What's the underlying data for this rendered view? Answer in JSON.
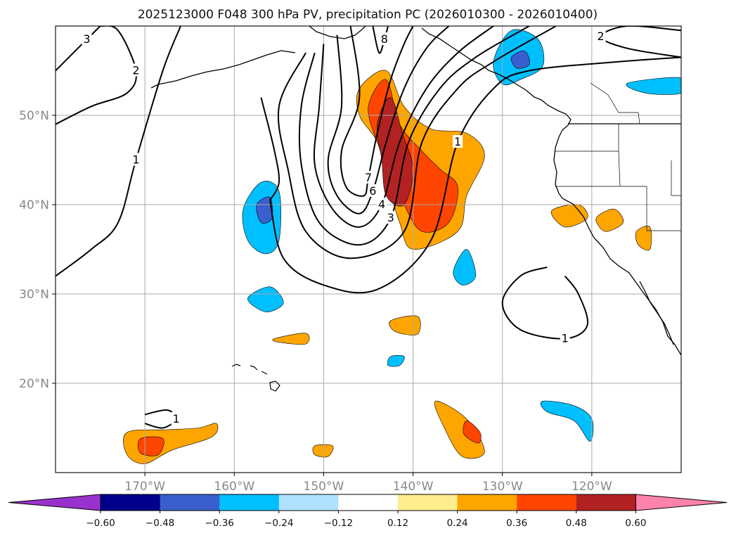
{
  "chart_data": {
    "type": "contour-map",
    "title": "2025123000 F048 300 hPa PV, precipitation PC (2026010300 - 2026010400)",
    "xlim": [
      -180,
      -110
    ],
    "ylim": [
      10,
      60
    ],
    "x_ticks": [
      -170,
      -160,
      -150,
      -140,
      -130,
      -120
    ],
    "x_tick_labels": [
      "170°W",
      "160°W",
      "150°W",
      "140°W",
      "130°W",
      "120°W"
    ],
    "y_ticks": [
      20,
      30,
      40,
      50
    ],
    "y_tick_labels": [
      "20°N",
      "30°N",
      "40°N",
      "50°N"
    ],
    "grid": true,
    "colorbar": {
      "levels": [
        -0.6,
        -0.48,
        -0.36,
        -0.24,
        -0.12,
        0.12,
        0.24,
        0.36,
        0.48,
        0.6
      ],
      "labels": [
        "−0.60",
        "−0.48",
        "−0.36",
        "−0.24",
        "−0.12",
        "0.12",
        "0.24",
        "0.36",
        "0.48",
        "0.60"
      ],
      "colors": [
        "#9932cc",
        "#00008b",
        "#3a5fcd",
        "#00bfff",
        "#b0e2ff",
        "#ffffff",
        "#ffec8b",
        "#ffa500",
        "#ff4500",
        "#b22222",
        "#ff82ab"
      ],
      "extend": "both"
    },
    "pv_contour_labels": [
      "1",
      "2",
      "3",
      "4",
      "6",
      "7",
      "8"
    ],
    "pv_contours": [
      {
        "level": 1,
        "label": "1",
        "points": [
          [
            -180,
            32
          ],
          [
            -176,
            35
          ],
          [
            -173,
            38
          ],
          [
            -171,
            45
          ],
          [
            -168,
            55
          ],
          [
            -166,
            60
          ]
        ]
      },
      {
        "level": 2,
        "label": "2",
        "points": [
          [
            -180,
            49
          ],
          [
            -176,
            51
          ],
          [
            -172,
            52.5
          ],
          [
            -171,
            55
          ],
          [
            -173,
            59.5
          ],
          [
            -175,
            60
          ]
        ]
      },
      {
        "level": 3,
        "label": "3",
        "points": [
          [
            -180,
            55
          ],
          [
            -178,
            57
          ],
          [
            -176.5,
            58.5
          ],
          [
            -175,
            60
          ]
        ]
      },
      {
        "level": 1,
        "label": "1",
        "points": [
          [
            -156,
            40.5
          ],
          [
            -154.5,
            34
          ],
          [
            -150,
            31
          ],
          [
            -144,
            30.5
          ],
          [
            -138,
            36
          ],
          [
            -135,
            47
          ],
          [
            -131,
            53
          ],
          [
            -127,
            55
          ],
          [
            -117,
            56
          ],
          [
            -110,
            56.5
          ]
        ]
      },
      {
        "level": 1,
        "label": "",
        "points": [
          [
            -157,
            52
          ],
          [
            -155.5,
            46
          ],
          [
            -155,
            42.5
          ],
          [
            -156,
            40.5
          ]
        ]
      },
      {
        "level": 2,
        "label": "",
        "points": [
          [
            -152,
            57
          ],
          [
            -155,
            51
          ],
          [
            -154,
            44
          ],
          [
            -152,
            37
          ],
          [
            -147,
            34
          ],
          [
            -141,
            37
          ],
          [
            -139,
            47
          ],
          [
            -135,
            53
          ],
          [
            -131,
            56
          ],
          [
            -124,
            60
          ]
        ]
      },
      {
        "level": 3,
        "label": "3",
        "points": [
          [
            -151,
            57
          ],
          [
            -152.5,
            51
          ],
          [
            -152.5,
            44.5
          ],
          [
            -150.5,
            38
          ],
          [
            -146,
            35.5
          ],
          [
            -142.5,
            38.5
          ],
          [
            -140.5,
            47
          ],
          [
            -137,
            53
          ],
          [
            -133,
            56.5
          ],
          [
            -127,
            60
          ]
        ]
      },
      {
        "level": 4,
        "label": "4",
        "points": [
          [
            -150,
            58
          ],
          [
            -150.5,
            51
          ],
          [
            -151,
            44.5
          ],
          [
            -149,
            39.5
          ],
          [
            -146,
            37.5
          ],
          [
            -143.5,
            40
          ],
          [
            -141.5,
            47
          ],
          [
            -138.5,
            53
          ],
          [
            -135,
            57
          ],
          [
            -131,
            60
          ]
        ]
      },
      {
        "level": 6,
        "label": "6",
        "points": [
          [
            -148.5,
            59
          ],
          [
            -148,
            51
          ],
          [
            -149.5,
            45
          ],
          [
            -148.5,
            41
          ],
          [
            -146,
            39
          ],
          [
            -144.5,
            41.5
          ],
          [
            -143,
            47
          ],
          [
            -141,
            53
          ],
          [
            -138.5,
            57.5
          ],
          [
            -136,
            60
          ]
        ]
      },
      {
        "level": 7,
        "label": "7",
        "points": [
          [
            -147,
            60
          ],
          [
            -146,
            52
          ],
          [
            -148,
            46
          ],
          [
            -147.5,
            42
          ],
          [
            -145.5,
            41
          ],
          [
            -145,
            43
          ],
          [
            -144,
            48
          ],
          [
            -142.5,
            54
          ],
          [
            -141,
            58
          ],
          [
            -140,
            60
          ]
        ]
      },
      {
        "level": 8,
        "label": "8",
        "points": [
          [
            -144.5,
            60
          ],
          [
            -143.8,
            57
          ],
          [
            -143.2,
            58.5
          ],
          [
            -142.8,
            60
          ]
        ]
      },
      {
        "level": 2,
        "label": "2",
        "points": [
          [
            -110,
            56.5
          ],
          [
            -116,
            57.5
          ],
          [
            -119,
            58.8
          ],
          [
            -116,
            60
          ],
          [
            -110,
            59.5
          ]
        ]
      },
      {
        "level": 1,
        "label": "1",
        "points": [
          [
            -125,
            33
          ],
          [
            -128,
            32
          ],
          [
            -130,
            29
          ],
          [
            -128,
            26
          ],
          [
            -123,
            25
          ],
          [
            -120.5,
            26.5
          ],
          [
            -121.5,
            30
          ],
          [
            -123,
            32
          ]
        ]
      },
      {
        "level": 1,
        "label": "1",
        "points": [
          [
            -170,
            16.5
          ],
          [
            -167.5,
            17
          ],
          [
            -166.5,
            16
          ],
          [
            -168,
            15
          ],
          [
            -170,
            15.5
          ]
        ]
      }
    ],
    "precip_regions": [
      {
        "value": 0.3,
        "points": [
          [
            -146,
            53
          ],
          [
            -143,
            55
          ],
          [
            -141,
            51
          ],
          [
            -138,
            48.5
          ],
          [
            -134,
            48
          ],
          [
            -132,
            45.5
          ],
          [
            -134,
            41
          ],
          [
            -135,
            37
          ],
          [
            -140,
            35
          ],
          [
            -141.5,
            38
          ],
          [
            -143,
            43
          ],
          [
            -144,
            47
          ],
          [
            -146,
            50
          ]
        ]
      },
      {
        "value": 0.4,
        "points": [
          [
            -145,
            51
          ],
          [
            -143,
            54
          ],
          [
            -141.5,
            49
          ],
          [
            -139,
            46
          ],
          [
            -137,
            44
          ],
          [
            -135,
            42
          ],
          [
            -136,
            38
          ],
          [
            -139,
            37
          ],
          [
            -141,
            40
          ],
          [
            -142.5,
            44
          ],
          [
            -144,
            47
          ]
        ]
      },
      {
        "value": 0.5,
        "points": [
          [
            -144,
            49
          ],
          [
            -142.5,
            52
          ],
          [
            -141.2,
            48
          ],
          [
            -140,
            44
          ],
          [
            -141,
            40
          ],
          [
            -143,
            41
          ],
          [
            -143.5,
            45
          ]
        ]
      },
      {
        "value": -0.3,
        "points": [
          [
            -159,
            39.5
          ],
          [
            -157,
            42.5
          ],
          [
            -155,
            41.5
          ],
          [
            -155,
            36
          ],
          [
            -156.5,
            34.5
          ],
          [
            -158.5,
            36
          ]
        ]
      },
      {
        "value": -0.4,
        "points": [
          [
            -157.5,
            40
          ],
          [
            -156,
            40.8
          ],
          [
            -155.8,
            38.5
          ],
          [
            -157,
            38
          ]
        ]
      },
      {
        "value": -0.3,
        "points": [
          [
            -131,
            56
          ],
          [
            -129,
            59.5
          ],
          [
            -126,
            58.5
          ],
          [
            -125.5,
            55.5
          ],
          [
            -128,
            54
          ],
          [
            -130,
            53.5
          ]
        ]
      },
      {
        "value": -0.45,
        "points": [
          [
            -129,
            56.5
          ],
          [
            -127.5,
            57.2
          ],
          [
            -127,
            55.7
          ],
          [
            -128.4,
            55.3
          ]
        ]
      },
      {
        "value": -0.3,
        "points": [
          [
            -116,
            53.6
          ],
          [
            -110,
            54.2
          ],
          [
            -110,
            52.5
          ],
          [
            -114,
            52.5
          ]
        ]
      },
      {
        "value": -0.3,
        "points": [
          [
            -135.5,
            32.5
          ],
          [
            -134,
            35
          ],
          [
            -133,
            32
          ],
          [
            -134.5,
            31
          ]
        ]
      },
      {
        "value": -0.25,
        "points": [
          [
            -158.5,
            29.5
          ],
          [
            -156,
            30.8
          ],
          [
            -154.5,
            29
          ],
          [
            -156.5,
            28
          ]
        ]
      },
      {
        "value": 0.3,
        "points": [
          [
            -124.5,
            39.3
          ],
          [
            -121.5,
            40
          ],
          [
            -120.5,
            38.5
          ],
          [
            -123,
            37.5
          ]
        ]
      },
      {
        "value": 0.35,
        "points": [
          [
            -119.5,
            38.5
          ],
          [
            -117.5,
            39.5
          ],
          [
            -116.5,
            38
          ],
          [
            -118.5,
            37
          ]
        ]
      },
      {
        "value": 0.3,
        "points": [
          [
            -142.5,
            27
          ],
          [
            -139.5,
            27.5
          ],
          [
            -139.5,
            25.5
          ],
          [
            -142,
            25.8
          ]
        ]
      },
      {
        "value": 0.3,
        "points": [
          [
            -155.5,
            25
          ],
          [
            -152,
            25.6
          ],
          [
            -152,
            24.4
          ],
          [
            -155,
            24.6
          ]
        ]
      },
      {
        "value": 0.3,
        "points": [
          [
            -137.5,
            18
          ],
          [
            -134,
            16
          ],
          [
            -132,
            12.3
          ],
          [
            -134.5,
            11.8
          ],
          [
            -136.5,
            15
          ]
        ]
      },
      {
        "value": 0.4,
        "points": [
          [
            -134,
            15.8
          ],
          [
            -132.5,
            14.5
          ],
          [
            -132.7,
            13.3
          ],
          [
            -134.3,
            14.3
          ]
        ]
      },
      {
        "value": 0.3,
        "points": [
          [
            -172,
            14.5
          ],
          [
            -167.5,
            14.8
          ],
          [
            -164,
            15
          ],
          [
            -162,
            15.5
          ],
          [
            -162.5,
            14
          ],
          [
            -167,
            12.5
          ],
          [
            -170,
            11
          ],
          [
            -172,
            12
          ]
        ]
      },
      {
        "value": 0.4,
        "points": [
          [
            -170.5,
            13.8
          ],
          [
            -168,
            13.8
          ],
          [
            -168.5,
            12
          ],
          [
            -170.5,
            12.2
          ]
        ]
      },
      {
        "value": -0.3,
        "points": [
          [
            -125.5,
            18
          ],
          [
            -122,
            17.5
          ],
          [
            -120,
            16
          ],
          [
            -120.2,
            13.5
          ],
          [
            -122,
            15.8
          ],
          [
            -125,
            16.8
          ]
        ]
      },
      {
        "value": -0.3,
        "points": [
          [
            -142.5,
            23
          ],
          [
            -141,
            23
          ],
          [
            -141.5,
            22
          ],
          [
            -142.8,
            22
          ]
        ]
      },
      {
        "value": 0.3,
        "points": [
          [
            -151,
            13
          ],
          [
            -149,
            13
          ],
          [
            -149.5,
            11.8
          ],
          [
            -151,
            12
          ]
        ]
      },
      {
        "value": 0.35,
        "points": [
          [
            -115,
            37
          ],
          [
            -113.5,
            37.5
          ],
          [
            -113.5,
            35
          ],
          [
            -114.8,
            35.5
          ]
        ]
      }
    ]
  }
}
